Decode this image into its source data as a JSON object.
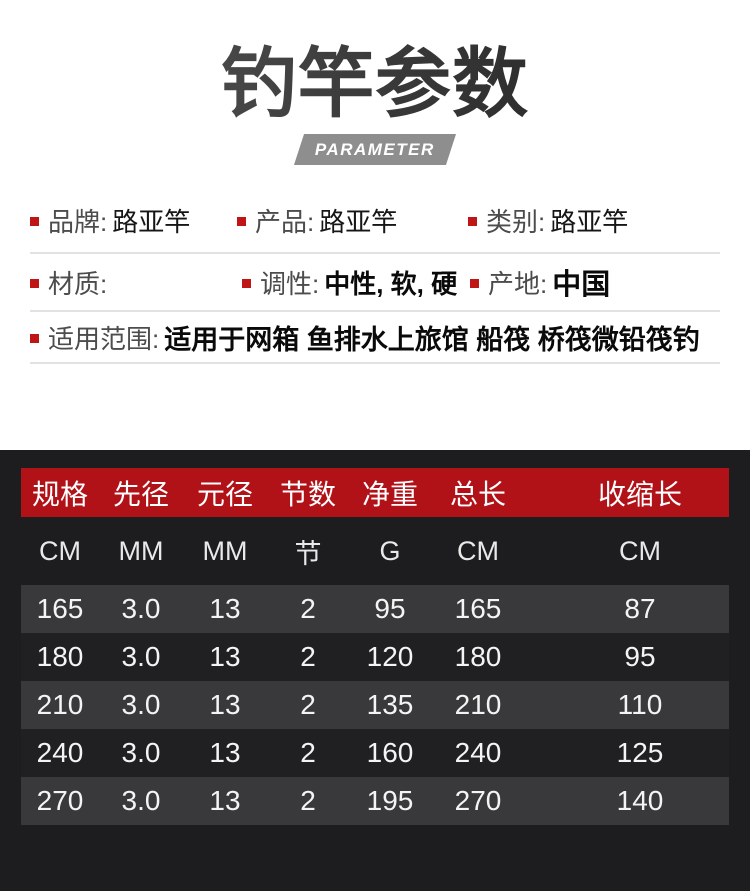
{
  "header": {
    "title": "钓竿参数",
    "badge": "PARAMETER"
  },
  "attributes": {
    "row1": {
      "brand_label": "品牌:",
      "brand_value": "路亚竿",
      "product_label": "产品:",
      "product_value": "路亚竿",
      "category_label": "类别:",
      "category_value": "路亚竿"
    },
    "row2": {
      "material_label": "材质:",
      "material_value": "",
      "action_label": "调性:",
      "action_value": "中性, 软, 硬",
      "origin_label": "产地:",
      "origin_value": "中国"
    },
    "row3": {
      "scope_label": "适用范围:",
      "scope_value": "适用于网箱 鱼排水上旅馆 船筏 桥筏微铅筏钓"
    }
  },
  "spec_table": {
    "headers": [
      "规格",
      "先径",
      "元径",
      "节数",
      "净重",
      "总长",
      "收缩长"
    ],
    "units": [
      "CM",
      "MM",
      "MM",
      "节",
      "G",
      "CM",
      "CM"
    ],
    "rows": [
      [
        "165",
        "3.0",
        "13",
        "2",
        "95",
        "165",
        "87"
      ],
      [
        "180",
        "3.0",
        "13",
        "2",
        "120",
        "180",
        "95"
      ],
      [
        "210",
        "3.0",
        "13",
        "2",
        "135",
        "210",
        "110"
      ],
      [
        "240",
        "3.0",
        "13",
        "2",
        "160",
        "240",
        "125"
      ],
      [
        "270",
        "3.0",
        "13",
        "2",
        "195",
        "270",
        "140"
      ]
    ]
  },
  "colors": {
    "accent_red": "#b11218",
    "bullet_red": "#bf1515",
    "table_bg": "#1d1d1f",
    "row_light": "#39393b",
    "row_dark": "#202022",
    "badge_gray": "#8e8e8e"
  }
}
